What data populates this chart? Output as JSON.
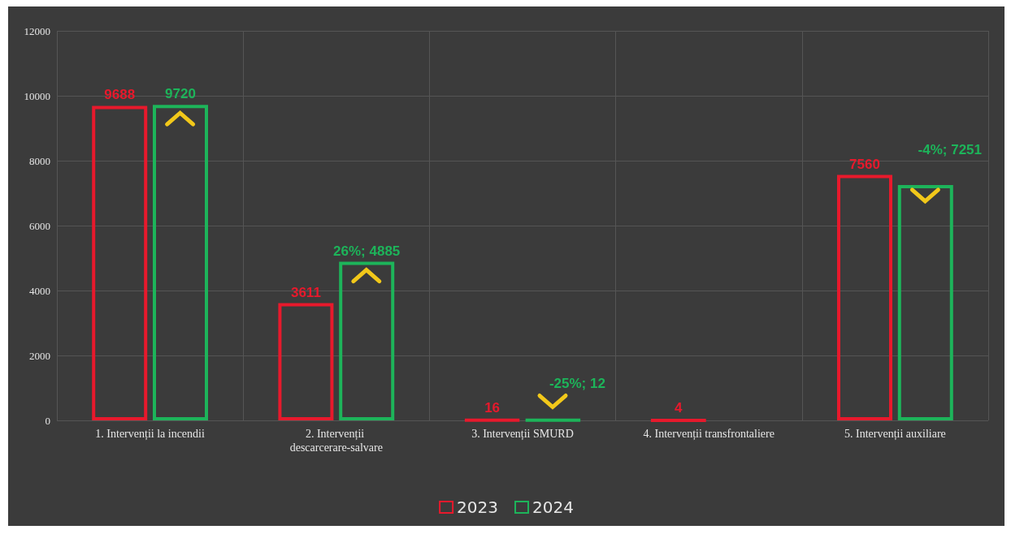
{
  "chart_data": {
    "type": "bar",
    "categories": [
      "1. Intervenții la incendii",
      "2. Intervenții descarcerare-salvare",
      "3. Intervenții SMURD",
      "4. Intervenții transfrontaliere",
      "5. Intervenții auxiliare"
    ],
    "series": [
      {
        "name": "2023",
        "color": "#e8192c",
        "values": [
          9688,
          3611,
          16,
          4,
          7560
        ],
        "value_labels": [
          "9688",
          "3611",
          "16",
          "4",
          "7560"
        ]
      },
      {
        "name": "2024",
        "color": "#1db45a",
        "values": [
          9720,
          4885,
          12,
          null,
          7251
        ],
        "value_labels": [
          "9720",
          "26%; 4885",
          "-25%; 12",
          null,
          "-4%; 7251"
        ]
      }
    ],
    "ylim": [
      0,
      12000
    ],
    "yticks": [
      0,
      2000,
      4000,
      6000,
      8000,
      10000,
      12000
    ],
    "grid": true,
    "legend": "bottom"
  }
}
